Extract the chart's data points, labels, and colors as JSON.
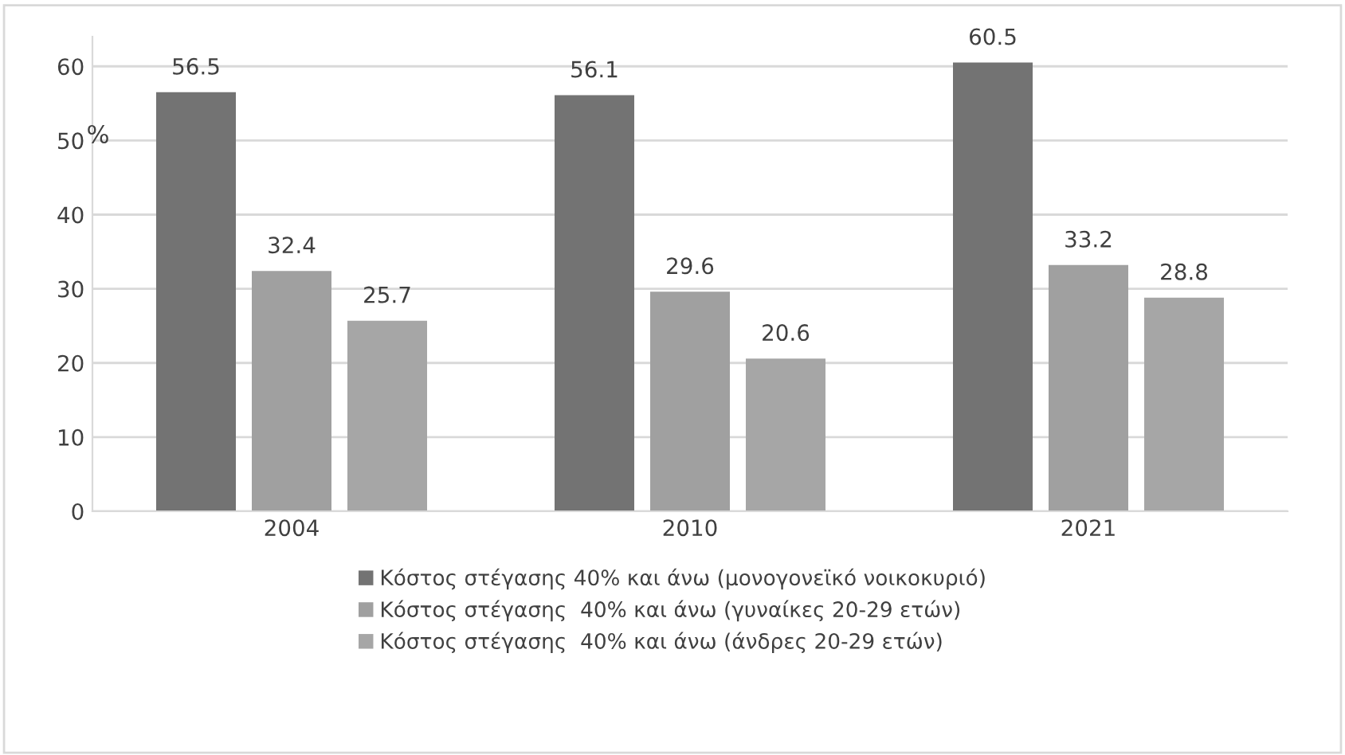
{
  "chart_data": {
    "type": "bar",
    "ylabel": "%",
    "categories": [
      "2004",
      "2010",
      "2021"
    ],
    "series": [
      {
        "name": "Κόστος στέγασης 40% και άνω (μονογονεϊκό νοικοκυριό)",
        "color": "#737373",
        "values": [
          56.5,
          56.1,
          60.5
        ]
      },
      {
        "name": "Κόστος στέγασης  40% και άνω (γυναίκες 20-29 ετών)",
        "color": "#a0a0a0",
        "values": [
          32.4,
          29.6,
          33.2
        ]
      },
      {
        "name": "Κόστος στέγασης  40% και άνω (άνδρες 20-29 ετών)",
        "color": "#a6a6a6",
        "values": [
          25.7,
          20.6,
          28.8
        ]
      }
    ],
    "ylim": [
      0,
      64
    ],
    "yticks": [
      0,
      10,
      20,
      30,
      40,
      50,
      60
    ],
    "grid": "y",
    "legend": "bottom",
    "data_labels": true
  }
}
